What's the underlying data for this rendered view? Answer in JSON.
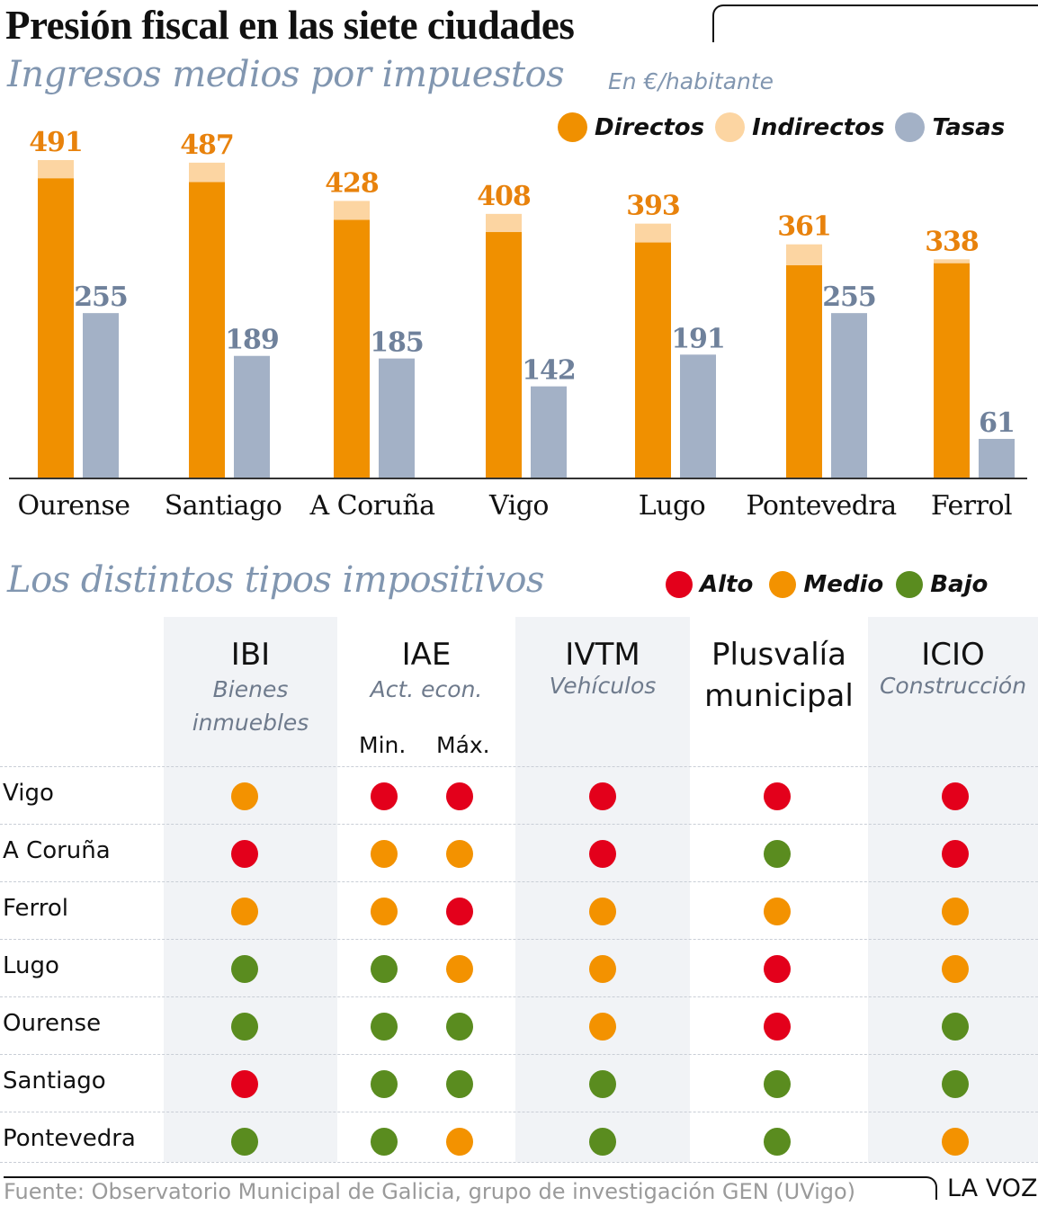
{
  "header": {
    "title": "Presión fiscal en las siete ciudades",
    "subtitle": "Ingresos medios por impuestos",
    "unit": "En €/habitante"
  },
  "colors": {
    "directos": "#f09000",
    "indirectos": "#fcd5a2",
    "tasas": "#a3b1c6",
    "total_label": "#e8820c",
    "tasas_label": "#6f819b",
    "alto": "#e3001b",
    "medio": "#f39200",
    "bajo": "#5a8c1f"
  },
  "legend1": [
    {
      "key": "directos",
      "label": "Directos"
    },
    {
      "key": "indirectos",
      "label": "Indirectos"
    },
    {
      "key": "tasas",
      "label": "Tasas"
    }
  ],
  "chart_data": {
    "type": "bar",
    "title": "Ingresos medios por impuestos",
    "ylabel": "En €/habitante",
    "xlabel": "",
    "stacked_groups": true,
    "ylim": [
      0,
      500
    ],
    "grid": false,
    "legend": "top-right",
    "categories": [
      "Ourense",
      "Santiago",
      "A Coruña",
      "Vigo",
      "Lugo",
      "Pontevedra",
      "Ferrol"
    ],
    "series": [
      {
        "name": "Directos",
        "stack": "impuestos",
        "values": [
          463,
          457,
          399,
          380,
          364,
          329,
          332
        ]
      },
      {
        "name": "Indirectos",
        "stack": "impuestos",
        "values": [
          28,
          30,
          29,
          28,
          29,
          32,
          6
        ]
      },
      {
        "name": "Tasas",
        "stack": "tasas",
        "values": [
          255,
          189,
          185,
          142,
          191,
          255,
          61
        ]
      }
    ],
    "total_labels": [
      "491",
      "487",
      "428",
      "408",
      "393",
      "361",
      "338"
    ],
    "totals": [
      491,
      487,
      428,
      408,
      393,
      361,
      338
    ],
    "tasas_labels": [
      "255",
      "189",
      "185",
      "142",
      "191",
      "255",
      "61"
    ]
  },
  "section2": {
    "title": "Los distintos tipos impositivos",
    "legend": [
      {
        "key": "alto",
        "label": "Alto"
      },
      {
        "key": "medio",
        "label": "Medio"
      },
      {
        "key": "bajo",
        "label": "Bajo"
      }
    ]
  },
  "table": {
    "columns": [
      {
        "code": "IBI",
        "desc": "Bienes inmuebles"
      },
      {
        "code": "IAE",
        "desc": "Act. econ.",
        "sub": [
          "Min.",
          "Máx."
        ]
      },
      {
        "code": "IVTM",
        "desc": "Vehículos"
      },
      {
        "code": "Plusvalía municipal",
        "desc": ""
      },
      {
        "code": "ICIO",
        "desc": "Construcción"
      }
    ],
    "col_labels": {
      "ibi_code": "IBI",
      "ibi_desc1": "Bienes",
      "ibi_desc2": "inmuebles",
      "iae_code": "IAE",
      "iae_desc": "Act. econ.",
      "iae_min": "Min.",
      "iae_max": "Máx.",
      "ivtm_code": "IVTM",
      "ivtm_desc": "Vehículos",
      "plus_code1": "Plusvalía",
      "plus_code2": "municipal",
      "icio_code": "ICIO",
      "icio_desc": "Construcción"
    },
    "rows": [
      {
        "city": "Vigo",
        "levels": [
          "medio",
          "alto",
          "alto",
          "alto",
          "alto",
          "alto"
        ]
      },
      {
        "city": "A Coruña",
        "levels": [
          "alto",
          "medio",
          "medio",
          "alto",
          "bajo",
          "alto"
        ]
      },
      {
        "city": "Ferrol",
        "levels": [
          "medio",
          "medio",
          "alto",
          "medio",
          "medio",
          "medio"
        ]
      },
      {
        "city": "Lugo",
        "levels": [
          "bajo",
          "bajo",
          "medio",
          "medio",
          "alto",
          "medio"
        ]
      },
      {
        "city": "Ourense",
        "levels": [
          "bajo",
          "bajo",
          "bajo",
          "medio",
          "alto",
          "bajo"
        ]
      },
      {
        "city": "Santiago",
        "levels": [
          "alto",
          "bajo",
          "bajo",
          "bajo",
          "bajo",
          "bajo"
        ]
      },
      {
        "city": "Pontevedra",
        "levels": [
          "bajo",
          "bajo",
          "medio",
          "bajo",
          "bajo",
          "medio"
        ]
      }
    ]
  },
  "footer": {
    "source": "Fuente: Observatorio Municipal de Galicia, grupo de investigación GEN (UVigo)",
    "brand": "LA VOZ"
  }
}
